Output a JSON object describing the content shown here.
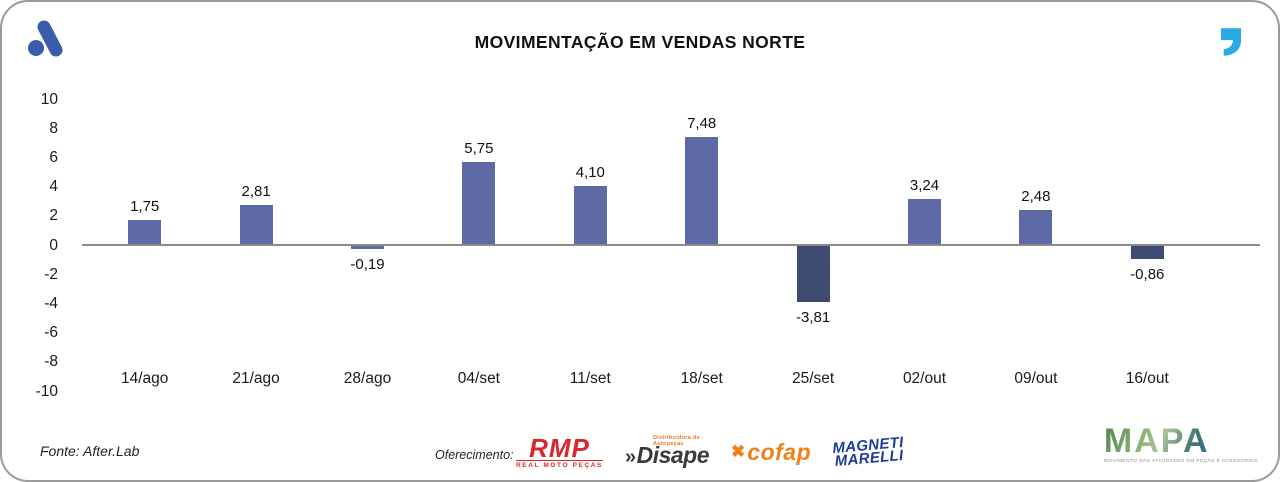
{
  "header": {
    "title": "MOVIMENTAÇÃO EM VENDAS NORTE"
  },
  "icons": {
    "top_left": "afterlab-dot-mark",
    "top_right": "quote-comma",
    "colors": {
      "brand_blue": "#3b5cac",
      "quote_cyan": "#29aae1"
    }
  },
  "chart_data": {
    "type": "bar",
    "title": "MOVIMENTAÇÃO EM VENDAS NORTE",
    "categories": [
      "14/ago",
      "21/ago",
      "28/ago",
      "04/set",
      "11/set",
      "18/set",
      "25/set",
      "02/out",
      "09/out",
      "16/out"
    ],
    "values": [
      1.75,
      2.81,
      -0.19,
      5.75,
      4.1,
      7.48,
      -3.81,
      3.24,
      2.48,
      -0.86
    ],
    "value_labels": [
      "1,75",
      "2,81",
      "-0,19",
      "5,75",
      "4,10",
      "7,48",
      "-3,81",
      "3,24",
      "2,48",
      "-0,86"
    ],
    "bar_colors": [
      "#5e6aa6",
      "#5e6aa6",
      "#5e6aa6",
      "#5e6aa6",
      "#5e6aa6",
      "#5e6aa6",
      "#3d4a71",
      "#5e6aa6",
      "#5e6aa6",
      "#3d4a71"
    ],
    "ylim": [
      -10,
      10
    ],
    "yticks": [
      10,
      8,
      6,
      4,
      2,
      0,
      -2,
      -4,
      -6,
      -8,
      -10
    ],
    "ytick_labels": [
      "10",
      "8",
      "6",
      "4",
      "2",
      "0",
      "-2",
      "-4",
      "-6",
      "-8",
      "-10"
    ],
    "xlabel": "",
    "ylabel": "",
    "grid": false,
    "legend": false,
    "colors": {
      "positive": "#5e6aa6",
      "negative_dark": "#3d4a71",
      "baseline": "#8b8b8b"
    }
  },
  "footer": {
    "source": "Fonte: After.Lab",
    "sponsor_label": "Oferecimento:",
    "sponsors": [
      {
        "name": "RMP",
        "subtitle": "REAL MOTO PEÇAS",
        "color": "#d7282e"
      },
      {
        "prefix": "»",
        "name": "Disape",
        "tagline": "Distribuidora de Autopeças",
        "color": "#3a3a3a",
        "accent": "#e87722"
      },
      {
        "icon": "✖",
        "name": "cofap",
        "color": "#f08019"
      },
      {
        "name_line1": "MAGNETI",
        "name_line2": "MARELLI",
        "color": "#1c3e96"
      }
    ],
    "brand": {
      "name": "MAPA",
      "caption": "MOVIMENTO DAS ATIVIDADES EM PEÇAS E ACESSÓRIOS"
    }
  }
}
